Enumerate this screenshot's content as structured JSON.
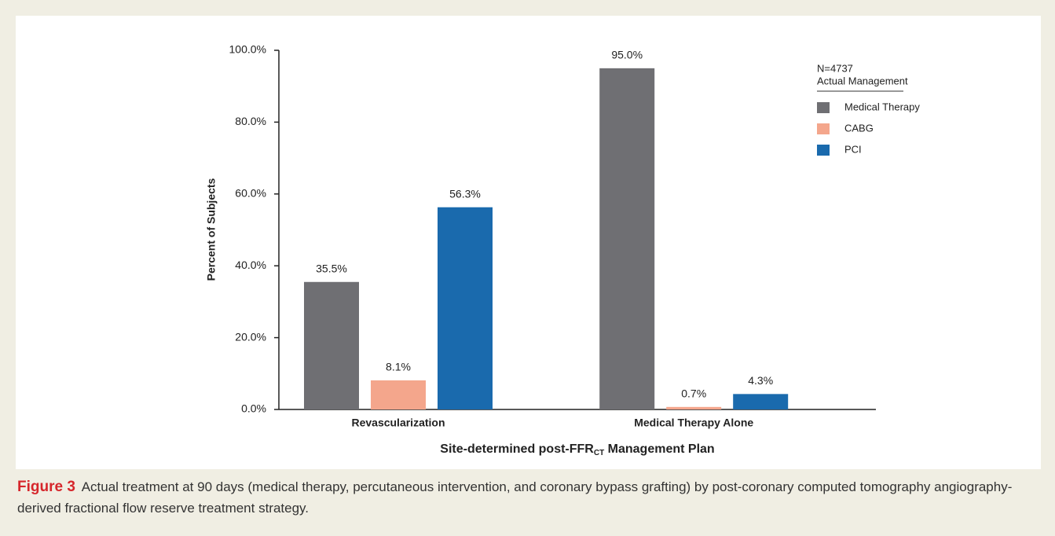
{
  "chart_data": {
    "type": "bar",
    "y_label": "Percent of Subjects",
    "x_label": "Site-determined post-FFR",
    "x_label_sub": "CT",
    "x_label_end": " Management Plan",
    "legend_title": "N=4737",
    "legend_subtitle": "Actual Management",
    "categories": [
      "Revascularization",
      "Medical Therapy Alone"
    ],
    "series": [
      {
        "name": "Medical Therapy",
        "color": "#6f6f73",
        "values": [
          35.5,
          95.0
        ],
        "value_labels": [
          "35.5%",
          "95.0%"
        ]
      },
      {
        "name": "CABG",
        "color": "#f4a68c",
        "values": [
          8.1,
          0.7
        ],
        "value_labels": [
          "8.1%",
          "0.7%"
        ]
      },
      {
        "name": "PCI",
        "color": "#1a6aad",
        "values": [
          56.3,
          4.3
        ],
        "value_labels": [
          "56.3%",
          "4.3%"
        ]
      }
    ],
    "ylim": [
      0,
      100
    ],
    "yticks": [
      {
        "value": 0,
        "label": "0.0%"
      },
      {
        "value": 20,
        "label": "20.0%"
      },
      {
        "value": 40,
        "label": "40.0%"
      },
      {
        "value": 60,
        "label": "60.0%"
      },
      {
        "value": 80,
        "label": "80.0%"
      },
      {
        "value": 100,
        "label": "100.0%"
      }
    ]
  },
  "caption": {
    "label": "Figure 3",
    "text": "Actual treatment at 90 days (medical therapy, percutaneous intervention, and coronary bypass grafting) by post-coronary computed tomography angiography-derived fractional flow reserve treatment strategy."
  }
}
